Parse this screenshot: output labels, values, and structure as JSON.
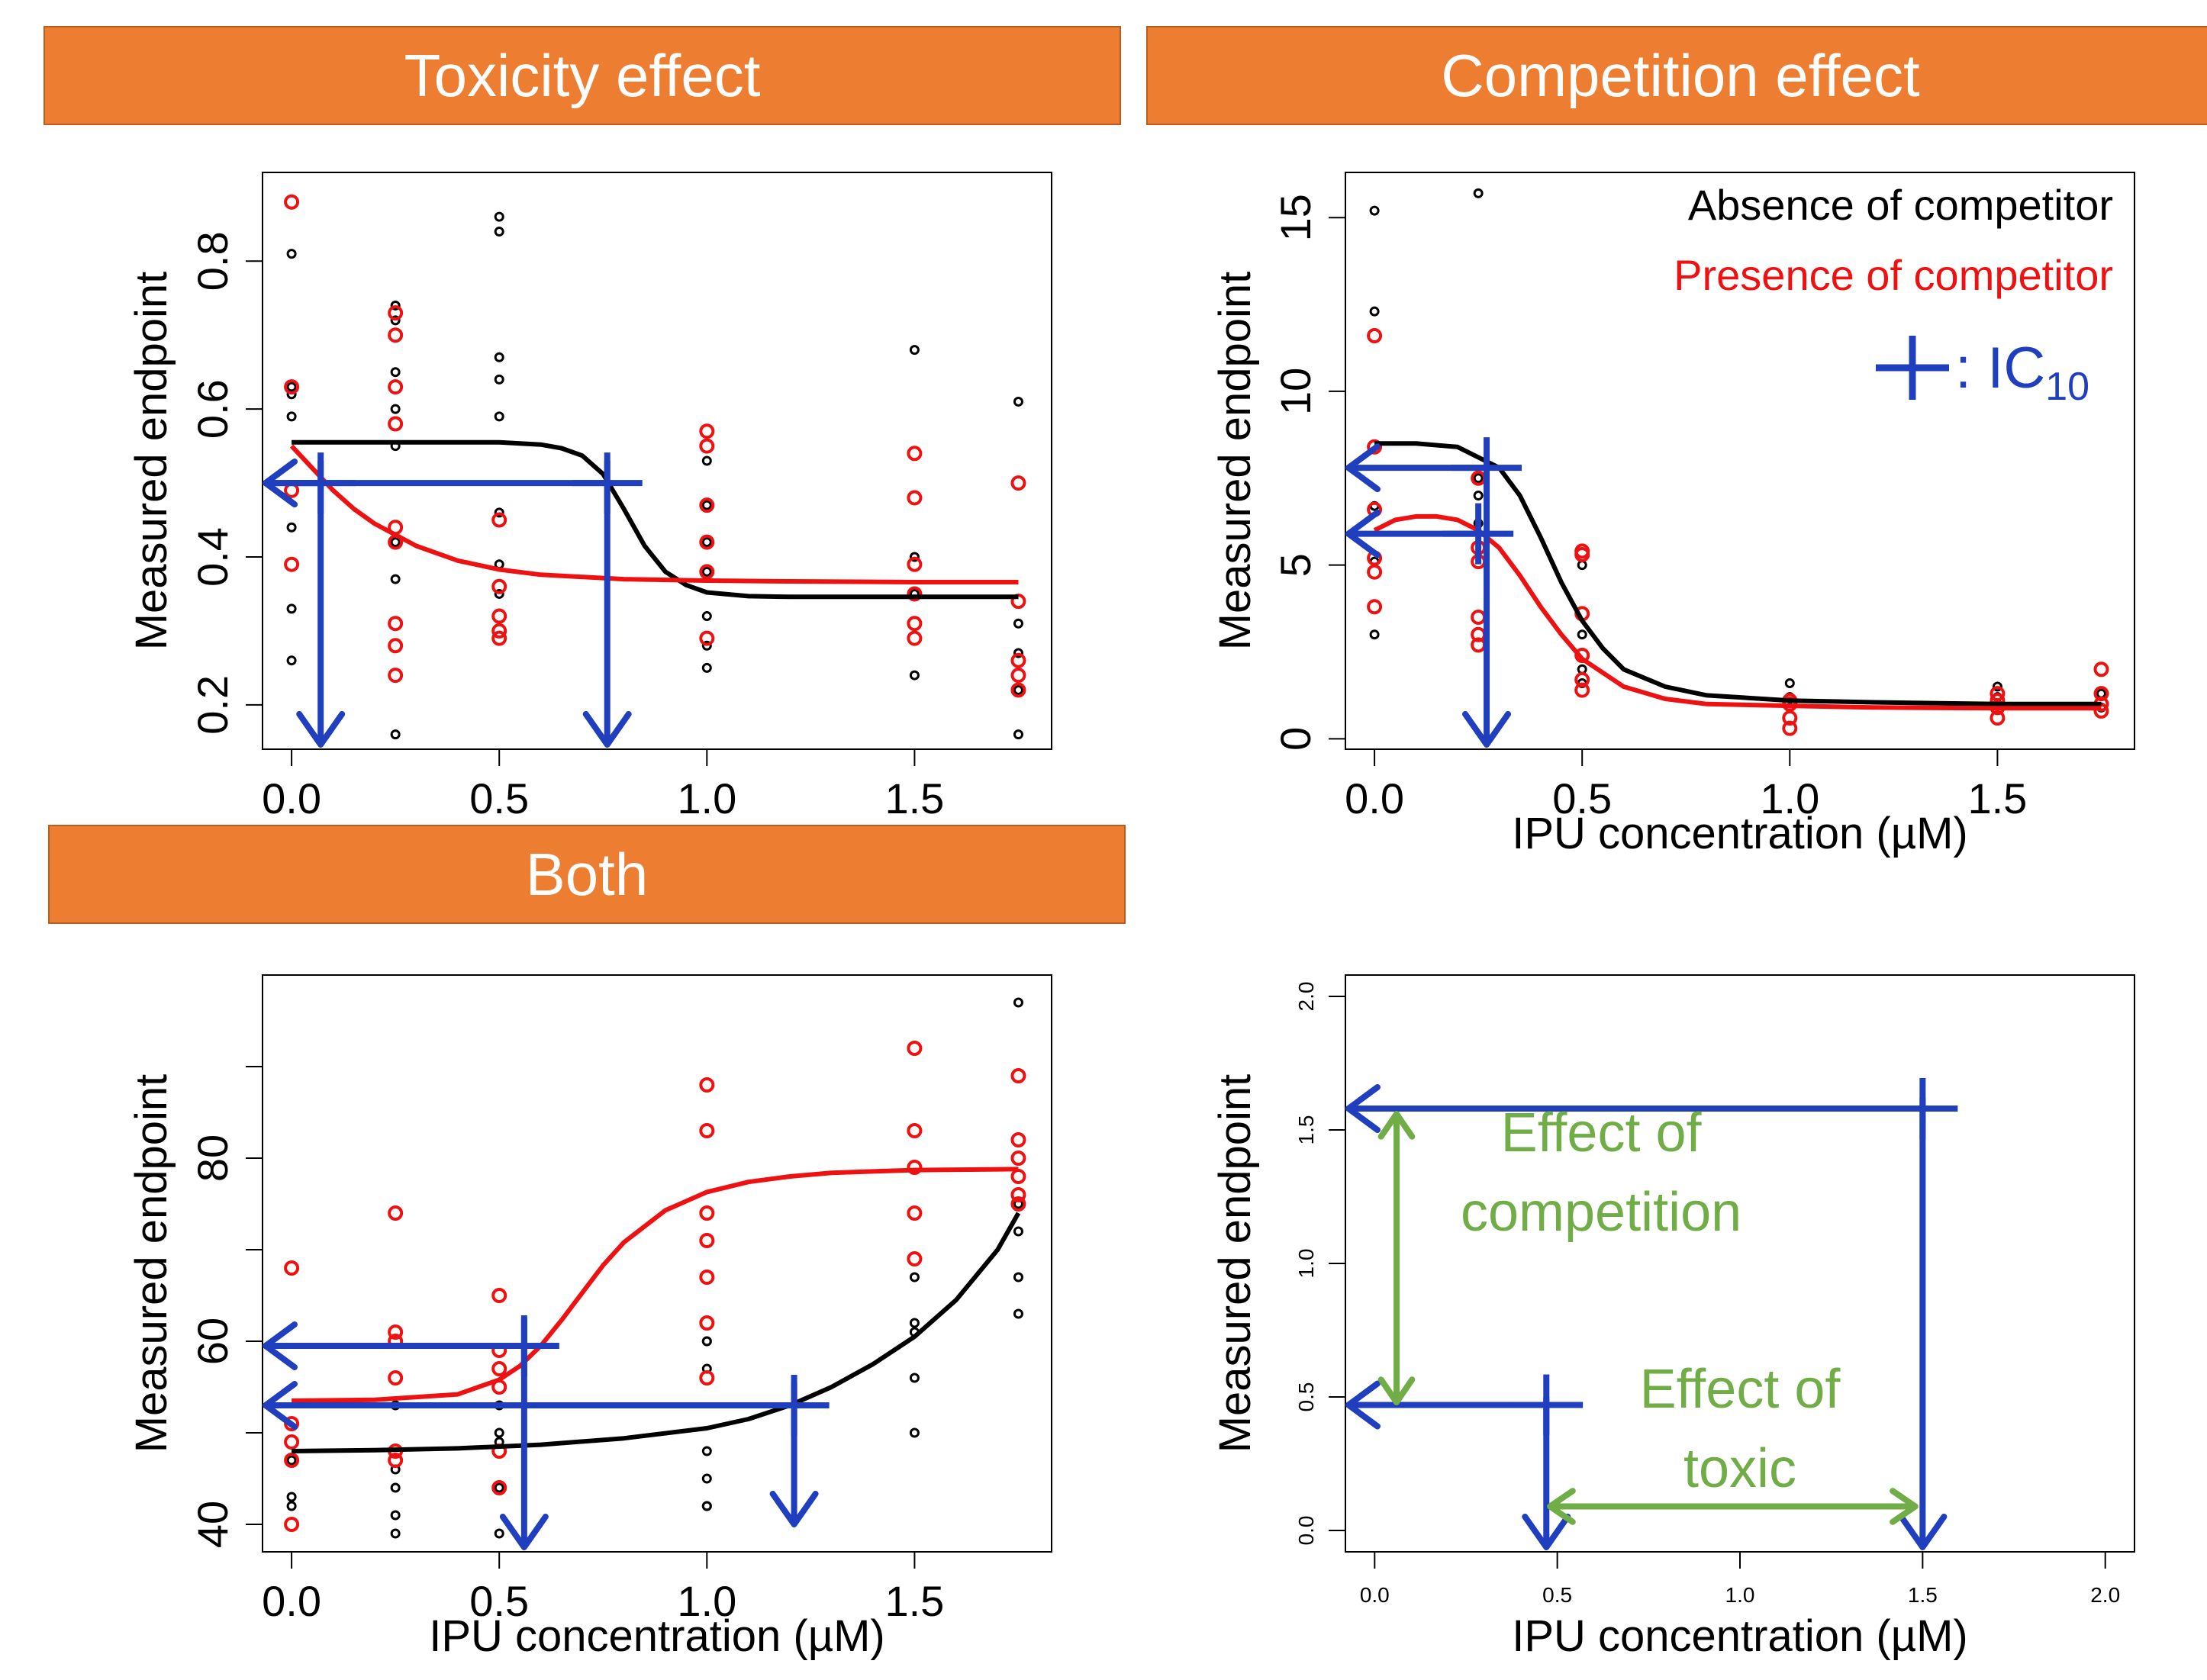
{
  "banners": {
    "toxicity": "Toxicity effect",
    "competition": "Competition effect",
    "both": "Both"
  },
  "colors": {
    "absence": "#000000",
    "presence": "#EE1111",
    "ic10": "#1F3FBF",
    "effect": "#70AD47",
    "banner": "#ED7D31"
  },
  "chart_data": [
    {
      "id": "toxicity",
      "type": "scatter",
      "title": "",
      "xlabel": "",
      "ylabel": "Measured endpoint",
      "xlim": [
        -0.07,
        1.83
      ],
      "ylim": [
        0.14,
        0.92
      ],
      "xticks": [
        0.0,
        0.5,
        1.0,
        1.5
      ],
      "xtick_labels": [
        "0.0",
        "0.5",
        "1.0",
        "1.5"
      ],
      "yticks": [
        0.2,
        0.4,
        0.6,
        0.8
      ],
      "ytick_labels": [
        "0.2",
        "0.4",
        "0.6",
        "0.8"
      ],
      "series": [
        {
          "key": "absence",
          "x": [
            0,
            0,
            0,
            0,
            0,
            0,
            0,
            0.25,
            0.25,
            0.25,
            0.25,
            0.25,
            0.25,
            0.25,
            0.25,
            0.5,
            0.5,
            0.5,
            0.5,
            0.5,
            0.5,
            0.5,
            0.5,
            1.0,
            1.0,
            1.0,
            1.0,
            1.0,
            1.0,
            1.0,
            1.5,
            1.5,
            1.5,
            1.5,
            1.75,
            1.75,
            1.75,
            1.75,
            1.75
          ],
          "y": [
            0.81,
            0.62,
            0.59,
            0.44,
            0.33,
            0.26,
            0.63,
            0.74,
            0.72,
            0.65,
            0.6,
            0.55,
            0.42,
            0.37,
            0.16,
            0.86,
            0.84,
            0.67,
            0.64,
            0.59,
            0.46,
            0.39,
            0.35,
            0.53,
            0.47,
            0.42,
            0.38,
            0.32,
            0.28,
            0.25,
            0.68,
            0.4,
            0.35,
            0.24,
            0.61,
            0.31,
            0.27,
            0.22,
            0.16
          ]
        },
        {
          "key": "presence",
          "x": [
            0,
            0,
            0,
            0,
            0.25,
            0.25,
            0.25,
            0.25,
            0.25,
            0.25,
            0.25,
            0.25,
            0.25,
            0.5,
            0.5,
            0.5,
            0.5,
            0.5,
            1.0,
            1.0,
            1.0,
            1.0,
            1.0,
            1.0,
            1.5,
            1.5,
            1.5,
            1.5,
            1.5,
            1.5,
            1.75,
            1.75,
            1.75,
            1.75,
            1.75
          ],
          "y": [
            0.88,
            0.63,
            0.49,
            0.39,
            0.73,
            0.7,
            0.63,
            0.58,
            0.44,
            0.42,
            0.31,
            0.28,
            0.24,
            0.45,
            0.32,
            0.3,
            0.29,
            0.36,
            0.57,
            0.55,
            0.47,
            0.42,
            0.38,
            0.29,
            0.54,
            0.48,
            0.39,
            0.35,
            0.31,
            0.29,
            0.5,
            0.34,
            0.26,
            0.24,
            0.22
          ]
        },
        {
          "key": "absence_fit",
          "type": "line",
          "x": [
            0,
            0.1,
            0.2,
            0.3,
            0.4,
            0.5,
            0.6,
            0.65,
            0.7,
            0.75,
            0.8,
            0.85,
            0.9,
            0.95,
            1.0,
            1.1,
            1.2,
            1.4,
            1.6,
            1.75
          ],
          "y": [
            0.555,
            0.555,
            0.555,
            0.555,
            0.555,
            0.555,
            0.552,
            0.547,
            0.537,
            0.512,
            0.465,
            0.415,
            0.38,
            0.362,
            0.352,
            0.347,
            0.346,
            0.346,
            0.346,
            0.346
          ]
        },
        {
          "key": "presence_fit",
          "type": "line",
          "x": [
            0,
            0.05,
            0.1,
            0.15,
            0.2,
            0.3,
            0.4,
            0.5,
            0.6,
            0.8,
            1.0,
            1.2,
            1.5,
            1.75
          ],
          "y": [
            0.55,
            0.52,
            0.49,
            0.465,
            0.445,
            0.415,
            0.395,
            0.383,
            0.376,
            0.37,
            0.368,
            0.367,
            0.366,
            0.366
          ]
        }
      ],
      "arrows": [
        {
          "kind": "h",
          "x1": 0.77,
          "x2": -0.07,
          "y": 0.5
        },
        {
          "kind": "h",
          "x1": 0.07,
          "x2": -0.07,
          "y": 0.5
        },
        {
          "kind": "v",
          "x": 0.07,
          "y1": 0.53,
          "y2": 0.14
        },
        {
          "kind": "v",
          "x": 0.76,
          "y1": 0.53,
          "y2": 0.14
        }
      ],
      "ic10_marks": [
        {
          "x": 0.07,
          "y": 0.5
        },
        {
          "x": 0.76,
          "y": 0.5
        }
      ],
      "effect_arrows": [],
      "labels": []
    },
    {
      "id": "competition",
      "type": "scatter",
      "title": "",
      "xlabel": "IPU concentration (µM)",
      "ylabel": "Measured endpoint",
      "xlim": [
        -0.07,
        1.83
      ],
      "ylim": [
        -0.3,
        16.3
      ],
      "xticks": [
        0.0,
        0.5,
        1.0,
        1.5
      ],
      "xtick_labels": [
        "0.0",
        "0.5",
        "1.0",
        "1.5"
      ],
      "yticks": [
        0,
        5,
        10,
        15
      ],
      "ytick_labels": [
        "0",
        "5",
        "10",
        "15"
      ],
      "series": [
        {
          "key": "absence",
          "name": "Absence of competitor",
          "x": [
            0,
            0,
            0,
            0,
            0,
            0.25,
            0.25,
            0.25,
            0.25,
            0.5,
            0.5,
            0.5,
            0.5,
            1.0,
            1.0,
            1.0,
            1.5,
            1.5,
            1.75,
            1.75
          ],
          "y": [
            15.2,
            12.3,
            6.7,
            5.1,
            3.0,
            15.7,
            7.5,
            7.0,
            6.2,
            5.0,
            3.0,
            2.0,
            1.6,
            1.6,
            1.2,
            0.9,
            1.5,
            1.2,
            1.3,
            0.9
          ]
        },
        {
          "key": "presence",
          "name": "Presence of competitor",
          "x": [
            0,
            0,
            0,
            0,
            0,
            0,
            0.25,
            0.25,
            0.25,
            0.25,
            0.25,
            0.25,
            0.5,
            0.5,
            0.5,
            0.5,
            0.5,
            0.5,
            1.0,
            1.0,
            1.0,
            1.0,
            1.5,
            1.5,
            1.5,
            1.5,
            1.75,
            1.75,
            1.75,
            1.75
          ],
          "y": [
            11.6,
            8.4,
            6.6,
            5.2,
            4.8,
            3.8,
            7.5,
            5.5,
            5.1,
            3.5,
            3.0,
            2.7,
            5.4,
            5.3,
            3.6,
            2.4,
            1.7,
            1.4,
            1.1,
            1.0,
            0.6,
            0.3,
            1.3,
            1.1,
            0.9,
            0.6,
            2.0,
            1.3,
            1.0,
            0.8
          ]
        },
        {
          "key": "absence_fit",
          "type": "line",
          "x": [
            0,
            0.1,
            0.2,
            0.3,
            0.35,
            0.4,
            0.45,
            0.5,
            0.55,
            0.6,
            0.7,
            0.8,
            1.0,
            1.2,
            1.5,
            1.75
          ],
          "y": [
            8.5,
            8.5,
            8.4,
            7.8,
            7.0,
            5.8,
            4.5,
            3.4,
            2.6,
            2.0,
            1.5,
            1.25,
            1.1,
            1.05,
            1.0,
            1.0
          ]
        },
        {
          "key": "presence_fit",
          "type": "line",
          "x": [
            0,
            0.05,
            0.1,
            0.15,
            0.2,
            0.25,
            0.3,
            0.35,
            0.4,
            0.45,
            0.5,
            0.6,
            0.7,
            0.8,
            1.0,
            1.2,
            1.5,
            1.75
          ],
          "y": [
            6.0,
            6.3,
            6.4,
            6.4,
            6.3,
            6.0,
            5.5,
            4.7,
            3.8,
            3.0,
            2.3,
            1.5,
            1.15,
            1.0,
            0.95,
            0.9,
            0.88,
            0.88
          ]
        }
      ],
      "legend_entries": [
        "Absence of competitor",
        "Presence of competitor"
      ],
      "legend_ic10": {
        "sep": ": ",
        "base": "IC",
        "sub": "10"
      },
      "arrows": [
        {
          "kind": "h",
          "x1": 0.27,
          "x2": -0.07,
          "y": 7.8
        },
        {
          "kind": "h",
          "x1": 0.27,
          "x2": -0.07,
          "y": 5.9
        },
        {
          "kind": "v",
          "x": 0.27,
          "y1": 7.8,
          "y2": -0.3
        }
      ],
      "ic10_marks": [
        {
          "x": 0.27,
          "y": 7.8
        },
        {
          "x": 0.25,
          "y": 5.9
        }
      ],
      "effect_arrows": [],
      "labels": []
    },
    {
      "id": "both",
      "type": "scatter",
      "title": "",
      "xlabel": "IPU concentration (µM)",
      "ylabel": "Measured endpoint",
      "xlim": [
        -0.07,
        1.83
      ],
      "ylim": [
        37,
        100
      ],
      "xticks": [
        0.0,
        0.5,
        1.0,
        1.5
      ],
      "xtick_labels": [
        "0.0",
        "0.5",
        "1.0",
        "1.5"
      ],
      "yticks": [
        40,
        50,
        60,
        70,
        80,
        90
      ],
      "ytick_labels": [
        "40",
        "",
        "60",
        "",
        "80",
        ""
      ],
      "series": [
        {
          "key": "absence",
          "x": [
            0,
            0,
            0,
            0.25,
            0.25,
            0.25,
            0.25,
            0.25,
            0.5,
            0.5,
            0.5,
            0.5,
            0.5,
            1.0,
            1.0,
            1.0,
            1.0,
            1.0,
            1.0,
            1.0,
            1.5,
            1.5,
            1.5,
            1.5,
            1.5,
            1.75,
            1.75,
            1.75,
            1.75,
            1.75
          ],
          "y": [
            47,
            43,
            42,
            53,
            46,
            44,
            41,
            39,
            53,
            50,
            49,
            44,
            39,
            60,
            60,
            57,
            48,
            45,
            42,
            42,
            67,
            62,
            61,
            56,
            50,
            97,
            75,
            72,
            67,
            63
          ]
        },
        {
          "key": "presence",
          "x": [
            0,
            0,
            0,
            0,
            0,
            0.25,
            0.25,
            0.25,
            0.25,
            0.25,
            0.25,
            0.5,
            0.5,
            0.5,
            0.5,
            0.5,
            0.5,
            1.0,
            1.0,
            1.0,
            1.0,
            1.0,
            1.0,
            1.0,
            1.5,
            1.5,
            1.5,
            1.5,
            1.5,
            1.75,
            1.75,
            1.75,
            1.75,
            1.75,
            1.75
          ],
          "y": [
            68,
            51,
            49,
            47,
            40,
            74,
            61,
            60,
            56,
            48,
            47,
            65,
            59,
            57,
            55,
            48,
            44,
            88,
            83,
            74,
            71,
            67,
            62,
            56,
            92,
            83,
            79,
            74,
            69,
            89,
            82,
            80,
            78,
            76,
            75
          ]
        },
        {
          "key": "absence_fit",
          "type": "line",
          "x": [
            0,
            0.2,
            0.4,
            0.6,
            0.8,
            1.0,
            1.1,
            1.2,
            1.3,
            1.4,
            1.5,
            1.6,
            1.7,
            1.75
          ],
          "y": [
            48.0,
            48.1,
            48.3,
            48.7,
            49.4,
            50.5,
            51.5,
            53.0,
            55.0,
            57.5,
            60.5,
            64.5,
            70.0,
            74.0
          ]
        },
        {
          "key": "presence_fit",
          "type": "line",
          "x": [
            0,
            0.2,
            0.4,
            0.5,
            0.55,
            0.6,
            0.65,
            0.7,
            0.75,
            0.8,
            0.9,
            1.0,
            1.1,
            1.2,
            1.3,
            1.5,
            1.75
          ],
          "y": [
            53.5,
            53.6,
            54.2,
            55.8,
            57.3,
            59.5,
            62.3,
            65.3,
            68.3,
            70.8,
            74.3,
            76.3,
            77.4,
            78.0,
            78.4,
            78.7,
            78.8
          ]
        }
      ],
      "arrows": [
        {
          "kind": "h",
          "x1": 0.63,
          "x2": -0.07,
          "y": 59.5
        },
        {
          "kind": "h",
          "x1": 1.29,
          "x2": -0.07,
          "y": 53.0
        },
        {
          "kind": "v",
          "x": 0.56,
          "y1": 62.5,
          "y2": 37
        },
        {
          "kind": "v",
          "x": 1.21,
          "y1": 55.5,
          "y2": 39.5
        }
      ],
      "ic10_marks": [
        {
          "x": 0.56,
          "y": 59.5
        },
        {
          "x": 1.21,
          "y": 53.0
        }
      ],
      "effect_arrows": [],
      "labels": []
    },
    {
      "id": "schema",
      "type": "scatter",
      "title": "",
      "xlabel": "IPU concentration (µM)",
      "ylabel": "Measured endpoint",
      "xlim": [
        -0.08,
        2.08
      ],
      "ylim": [
        -0.08,
        2.08
      ],
      "xticks": [
        0.0,
        0.5,
        1.0,
        1.5,
        2.0
      ],
      "xtick_labels": [
        "0.0",
        "0.5",
        "1.0",
        "1.5",
        "2.0"
      ],
      "yticks": [
        0.0,
        0.5,
        1.0,
        1.5,
        2.0
      ],
      "ytick_labels": [
        "0.0",
        "0.5",
        "1.0",
        "1.5",
        "2.0"
      ],
      "small_ticks": true,
      "series": [],
      "arrows": [
        {
          "kind": "h",
          "x1": 1.58,
          "x2": -0.08,
          "y": 1.58
        },
        {
          "kind": "h",
          "x1": 0.57,
          "x2": -0.08,
          "y": 0.47
        },
        {
          "kind": "v",
          "x": 1.5,
          "y1": 1.62,
          "y2": -0.08
        },
        {
          "kind": "v",
          "x": 0.47,
          "y1": 0.5,
          "y2": -0.08
        }
      ],
      "ic10_marks": [
        {
          "x": 1.5,
          "y": 1.58
        },
        {
          "x": 0.47,
          "y": 0.47
        }
      ],
      "effect_arrows": [
        {
          "x1": 0.06,
          "y1": 0.48,
          "x2": 0.06,
          "y2": 1.56
        },
        {
          "x1": 0.48,
          "y1": 0.09,
          "x2": 1.48,
          "y2": 0.09
        }
      ],
      "labels": [
        {
          "lines": [
            "Effect of",
            "competition"
          ],
          "x": 0.62,
          "y": 1.42
        },
        {
          "lines": [
            "Effect of",
            "toxic"
          ],
          "x": 1.0,
          "y": 0.46
        }
      ]
    }
  ]
}
